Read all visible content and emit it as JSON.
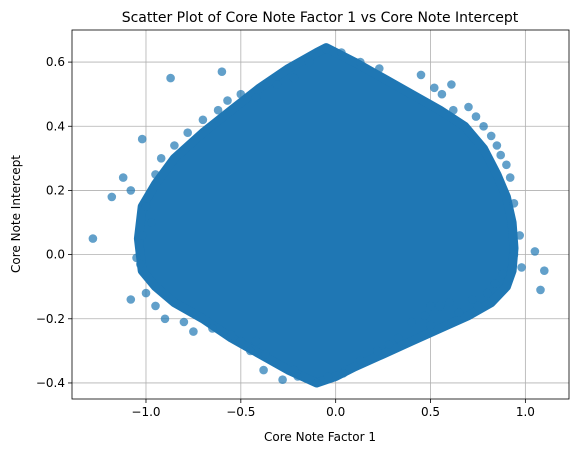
{
  "chart_data": {
    "type": "scatter",
    "title": "Scatter Plot of Core Note Factor 1 vs Core Note Intercept",
    "xlabel": "Core Note Factor 1",
    "ylabel": "Core Note Intercept",
    "xlim": [
      -1.39,
      1.23
    ],
    "ylim": [
      -0.45,
      0.7
    ],
    "xticks": [
      -1.0,
      -0.5,
      0.0,
      0.5,
      1.0
    ],
    "xtick_labels": [
      "−1.0",
      "−0.5",
      "0.0",
      "0.5",
      "1.0"
    ],
    "yticks": [
      -0.4,
      -0.2,
      0.0,
      0.2,
      0.4,
      0.6
    ],
    "ytick_labels": [
      "−0.4",
      "−0.2",
      "0.0",
      "0.2",
      "0.4",
      "0.6"
    ],
    "grid": true,
    "marker_color": "#1f77b4",
    "marker_alpha": 0.7,
    "dense_region_outline": [
      [
        -0.05,
        0.645
      ],
      [
        0.1,
        0.6
      ],
      [
        0.25,
        0.55
      ],
      [
        0.4,
        0.5
      ],
      [
        0.55,
        0.45
      ],
      [
        0.68,
        0.4
      ],
      [
        0.78,
        0.33
      ],
      [
        0.85,
        0.25
      ],
      [
        0.9,
        0.18
      ],
      [
        0.93,
        0.1
      ],
      [
        0.94,
        0.02
      ],
      [
        0.93,
        -0.05
      ],
      [
        0.9,
        -0.1
      ],
      [
        0.82,
        -0.15
      ],
      [
        0.7,
        -0.19
      ],
      [
        0.55,
        -0.23
      ],
      [
        0.4,
        -0.27
      ],
      [
        0.25,
        -0.31
      ],
      [
        0.1,
        -0.35
      ],
      [
        0.0,
        -0.38
      ],
      [
        -0.1,
        -0.4
      ],
      [
        -0.25,
        -0.36
      ],
      [
        -0.4,
        -0.31
      ],
      [
        -0.55,
        -0.26
      ],
      [
        -0.7,
        -0.2
      ],
      [
        -0.85,
        -0.15
      ],
      [
        -0.95,
        -0.1
      ],
      [
        -1.02,
        -0.05
      ],
      [
        -1.04,
        0.05
      ],
      [
        -1.02,
        0.15
      ],
      [
        -0.95,
        0.22
      ],
      [
        -0.85,
        0.3
      ],
      [
        -0.7,
        0.38
      ],
      [
        -0.55,
        0.45
      ],
      [
        -0.4,
        0.52
      ],
      [
        -0.25,
        0.58
      ],
      [
        -0.1,
        0.63
      ]
    ],
    "outlier_points": [
      [
        -1.28,
        0.05
      ],
      [
        -1.18,
        0.18
      ],
      [
        -1.12,
        0.24
      ],
      [
        -1.08,
        0.2
      ],
      [
        -1.02,
        0.36
      ],
      [
        -0.87,
        0.55
      ],
      [
        -0.6,
        0.57
      ],
      [
        -0.5,
        0.5
      ],
      [
        -0.42,
        0.49
      ],
      [
        -1.08,
        -0.14
      ],
      [
        -1.05,
        -0.01
      ],
      [
        -0.8,
        -0.21
      ],
      [
        -0.5,
        -0.27
      ],
      [
        -0.45,
        -0.3
      ],
      [
        -0.37,
        -0.31
      ],
      [
        -0.38,
        -0.36
      ],
      [
        -0.28,
        -0.39
      ],
      [
        -0.22,
        -0.36
      ],
      [
        -0.2,
        -0.38
      ],
      [
        -0.1,
        -0.4
      ],
      [
        0.13,
        0.6
      ],
      [
        0.23,
        0.58
      ],
      [
        0.45,
        0.56
      ],
      [
        0.52,
        0.52
      ],
      [
        0.62,
        0.45
      ],
      [
        0.7,
        0.46
      ],
      [
        0.78,
        0.4
      ],
      [
        0.82,
        0.37
      ],
      [
        0.87,
        0.31
      ],
      [
        0.92,
        0.24
      ],
      [
        0.94,
        0.16
      ],
      [
        0.97,
        0.06
      ],
      [
        0.94,
        0.0
      ],
      [
        0.98,
        -0.04
      ],
      [
        1.05,
        0.01
      ],
      [
        1.1,
        -0.05
      ],
      [
        1.08,
        -0.11
      ],
      [
        0.8,
        -0.12
      ],
      [
        0.72,
        -0.14
      ],
      [
        0.6,
        -0.15
      ],
      [
        0.55,
        -0.16
      ],
      [
        0.5,
        -0.16
      ],
      [
        0.47,
        -0.19
      ],
      [
        0.4,
        -0.21
      ],
      [
        0.33,
        -0.26
      ],
      [
        0.28,
        -0.28
      ],
      [
        0.22,
        -0.3
      ],
      [
        0.13,
        -0.33
      ],
      [
        0.61,
        0.53
      ],
      [
        0.74,
        0.43
      ],
      [
        0.56,
        0.5
      ],
      [
        -0.75,
        -0.24
      ],
      [
        -0.9,
        -0.2
      ],
      [
        -0.95,
        -0.16
      ],
      [
        -1.0,
        -0.12
      ],
      [
        -0.97,
        0.1
      ],
      [
        -0.95,
        0.25
      ],
      [
        -0.92,
        0.3
      ],
      [
        -0.85,
        0.34
      ],
      [
        -0.78,
        0.38
      ],
      [
        -0.7,
        0.42
      ],
      [
        -0.62,
        0.45
      ],
      [
        -0.57,
        0.48
      ],
      [
        -0.31,
        0.53
      ],
      [
        -0.22,
        0.55
      ],
      [
        -0.14,
        0.6
      ],
      [
        -0.05,
        0.64
      ],
      [
        0.03,
        0.63
      ],
      [
        -0.55,
        -0.25
      ],
      [
        -0.65,
        -0.23
      ],
      [
        -0.42,
        -0.27
      ],
      [
        0.35,
        -0.28
      ],
      [
        0.5,
        -0.22
      ],
      [
        0.65,
        -0.18
      ],
      [
        0.75,
        -0.16
      ],
      [
        0.84,
        -0.09
      ],
      [
        0.88,
        -0.06
      ],
      [
        -1.03,
        -0.03
      ],
      [
        -1.02,
        0.06
      ],
      [
        -1.0,
        0.15
      ],
      [
        0.9,
        0.28
      ],
      [
        0.85,
        0.34
      ],
      [
        0.04,
        -0.37
      ],
      [
        -0.04,
        -0.38
      ]
    ]
  }
}
